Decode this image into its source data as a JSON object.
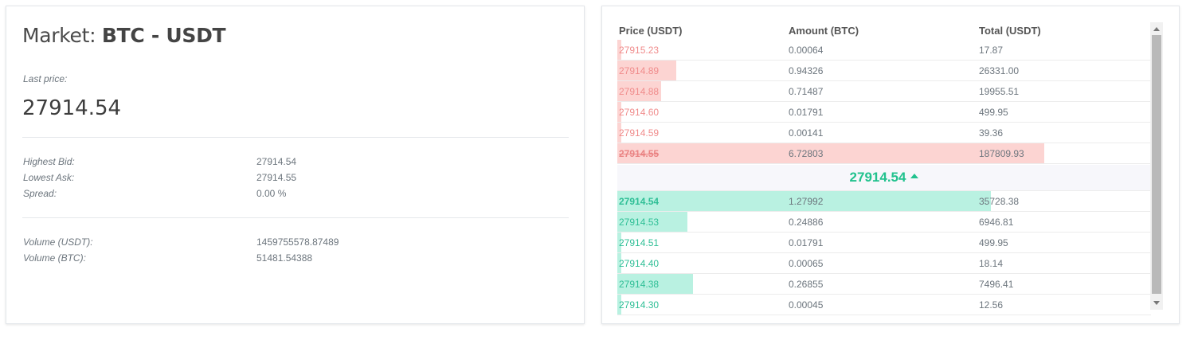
{
  "market": {
    "title_prefix": "Market:",
    "pair": "BTC - USDT",
    "last_price_label": "Last price:",
    "last_price": "27914.54",
    "stats_group1": [
      {
        "label": "Highest Bid:",
        "value": "27914.54"
      },
      {
        "label": "Lowest Ask:",
        "value": "27914.55"
      },
      {
        "label": "Spread:",
        "value": "0.00 %"
      }
    ],
    "stats_group2": [
      {
        "label": "Volume (USDT):",
        "value": "1459755578.87489"
      },
      {
        "label": "Volume (BTC):",
        "value": "51481.54388"
      }
    ]
  },
  "orderbook": {
    "headers": {
      "price": "Price (USDT)",
      "amount": "Amount (BTC)",
      "total": "Total (USDT)"
    },
    "asks": [
      {
        "price": "27915.23",
        "amount": "0.00064",
        "total": "17.87",
        "depth": 0.008
      },
      {
        "price": "27914.89",
        "amount": "0.94326",
        "total": "26331.00",
        "depth": 0.11
      },
      {
        "price": "27914.88",
        "amount": "0.71487",
        "total": "19955.51",
        "depth": 0.082
      },
      {
        "price": "27914.60",
        "amount": "0.01791",
        "total": "499.95",
        "depth": 0.008
      },
      {
        "price": "27914.59",
        "amount": "0.00141",
        "total": "39.36",
        "depth": 0.008
      },
      {
        "price": "27914.55",
        "amount": "6.72803",
        "total": "187809.93",
        "depth": 0.8
      }
    ],
    "mid_price": "27914.54",
    "bids": [
      {
        "price": "27914.54",
        "amount": "1.27992",
        "total": "35728.38",
        "depth": 0.7
      },
      {
        "price": "27914.53",
        "amount": "0.24886",
        "total": "6946.81",
        "depth": 0.132
      },
      {
        "price": "27914.51",
        "amount": "0.01791",
        "total": "499.95",
        "depth": 0.008
      },
      {
        "price": "27914.40",
        "amount": "0.00065",
        "total": "18.14",
        "depth": 0.008
      },
      {
        "price": "27914.38",
        "amount": "0.26855",
        "total": "7496.41",
        "depth": 0.142
      },
      {
        "price": "27914.30",
        "amount": "0.00045",
        "total": "12.56",
        "depth": 0.008
      }
    ]
  },
  "colors": {
    "ask": "#f08c8c",
    "ask_bar": "#fcd4d2",
    "bid": "#2fbf96",
    "bid_bar": "#b9f1e1",
    "mid": "#22c28e"
  }
}
